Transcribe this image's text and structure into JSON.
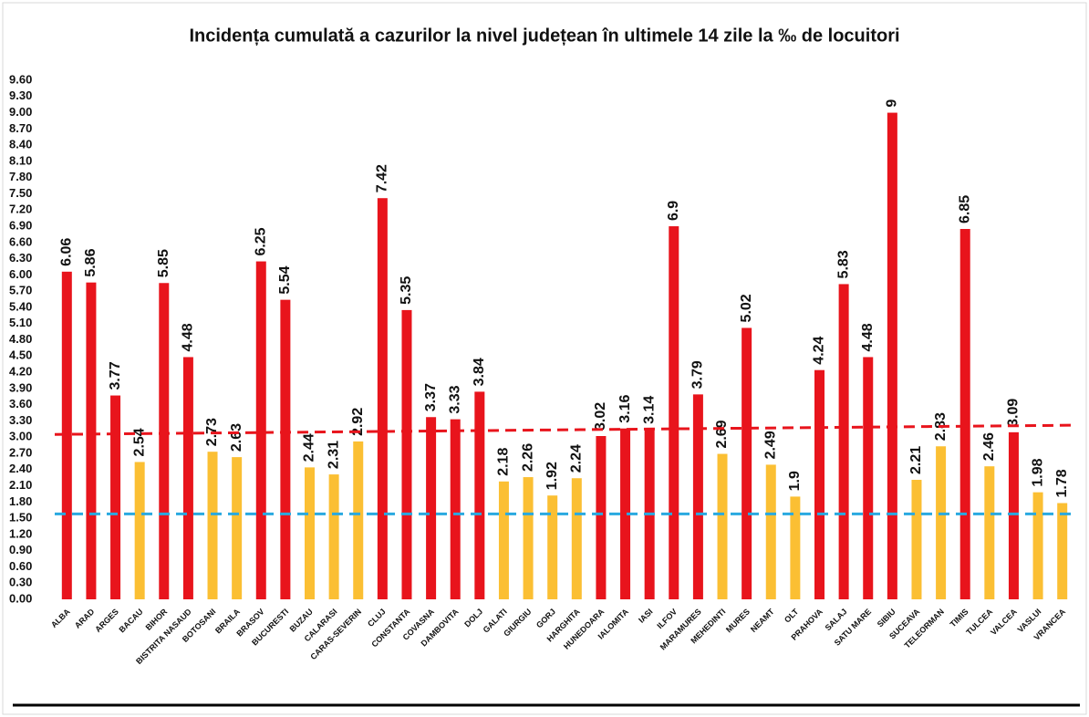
{
  "chart_data": {
    "type": "bar",
    "title": "Incidența cumulată a cazurilor la nivel județean în ultimele 14 zile la ‰ de locuitori",
    "categories": [
      "ALBA",
      "ARAD",
      "ARGES",
      "BACAU",
      "BIHOR",
      "BISTRITA NASAUD",
      "BOTOSANI",
      "BRAILA",
      "BRASOV",
      "BUCURESTI",
      "BUZAU",
      "CALARASI",
      "CARAS-SEVERIN",
      "CLUJ",
      "CONSTANTA",
      "COVASNA",
      "DAMBOVITA",
      "DOLJ",
      "GALATI",
      "GIURGIU",
      "GORJ",
      "HARGHITA",
      "HUNEDOARA",
      "IALOMITA",
      "IASI",
      "ILFOV",
      "MARAMURES",
      "MEHEDINTI",
      "MURES",
      "NEAMT",
      "OLT",
      "PRAHOVA",
      "SALAJ",
      "SATU MARE",
      "SIBIU",
      "SUCEAVA",
      "TELEORMAN",
      "TIMIS",
      "TULCEA",
      "VALCEA",
      "VASLUI",
      "VRANCEA"
    ],
    "values": [
      6.06,
      5.86,
      3.77,
      2.54,
      5.85,
      4.48,
      2.73,
      2.63,
      6.25,
      5.54,
      2.44,
      2.31,
      2.92,
      7.42,
      5.35,
      3.37,
      3.33,
      3.84,
      2.18,
      2.26,
      1.92,
      2.24,
      3.02,
      3.16,
      3.14,
      6.9,
      3.79,
      2.69,
      5.02,
      2.49,
      1.9,
      4.24,
      5.83,
      4.48,
      9,
      2.21,
      2.83,
      6.85,
      2.46,
      3.09,
      1.98,
      1.78
    ],
    "colors": [
      "#e8141c",
      "#e8141c",
      "#e8141c",
      "#fbbf33",
      "#e8141c",
      "#e8141c",
      "#fbbf33",
      "#fbbf33",
      "#e8141c",
      "#e8141c",
      "#fbbf33",
      "#fbbf33",
      "#fbbf33",
      "#e8141c",
      "#e8141c",
      "#e8141c",
      "#e8141c",
      "#e8141c",
      "#fbbf33",
      "#fbbf33",
      "#fbbf33",
      "#fbbf33",
      "#e8141c",
      "#e8141c",
      "#e8141c",
      "#e8141c",
      "#e8141c",
      "#fbbf33",
      "#e8141c",
      "#fbbf33",
      "#fbbf33",
      "#e8141c",
      "#e8141c",
      "#e8141c",
      "#e8141c",
      "#fbbf33",
      "#fbbf33",
      "#e8141c",
      "#fbbf33",
      "#e8141c",
      "#fbbf33",
      "#fbbf33"
    ],
    "ylim": [
      0,
      9.6
    ],
    "yticks": [
      {
        "value": 0,
        "label": "0.00"
      },
      {
        "value": 0.3,
        "label": "0.30"
      },
      {
        "value": 0.6,
        "label": "0.60"
      },
      {
        "value": 0.9,
        "label": "0.90"
      },
      {
        "value": 1.2,
        "label": "1.20"
      },
      {
        "value": 1.5,
        "label": "1.50"
      },
      {
        "value": 1.8,
        "label": "1.80"
      },
      {
        "value": 2.1,
        "label": "2.10"
      },
      {
        "value": 2.4,
        "label": "2.40"
      },
      {
        "value": 2.7,
        "label": "2.70"
      },
      {
        "value": 3,
        "label": "3.00"
      },
      {
        "value": 3.3,
        "label": "3.30"
      },
      {
        "value": 3.6,
        "label": "3.60"
      },
      {
        "value": 3.9,
        "label": "3.90"
      },
      {
        "value": 4.2,
        "label": "4.20"
      },
      {
        "value": 4.5,
        "label": "4.50"
      },
      {
        "value": 4.8,
        "label": "4.80"
      },
      {
        "value": 5.1,
        "label": "5.10"
      },
      {
        "value": 5.4,
        "label": "5.40"
      },
      {
        "value": 5.7,
        "label": "5.70"
      },
      {
        "value": 6,
        "label": "6.00"
      },
      {
        "value": 6.3,
        "label": "6.30"
      },
      {
        "value": 6.6,
        "label": "6.60"
      },
      {
        "value": 6.9,
        "label": "6.90"
      },
      {
        "value": 7.2,
        "label": "7.20"
      },
      {
        "value": 7.5,
        "label": "7.50"
      },
      {
        "value": 7.8,
        "label": "7.80"
      },
      {
        "value": 8.1,
        "label": "8.10"
      },
      {
        "value": 8.4,
        "label": "8.40"
      },
      {
        "value": 8.7,
        "label": "8.70"
      },
      {
        "value": 9,
        "label": "9.00"
      },
      {
        "value": 9.3,
        "label": "9.30"
      },
      {
        "value": 9.6,
        "label": "9.60"
      }
    ],
    "lines": [
      {
        "color": "#e8141c",
        "start": 3.05,
        "end": 3.22
      },
      {
        "color": "#29a9e0",
        "start": 1.58,
        "end": 1.58
      }
    ]
  }
}
